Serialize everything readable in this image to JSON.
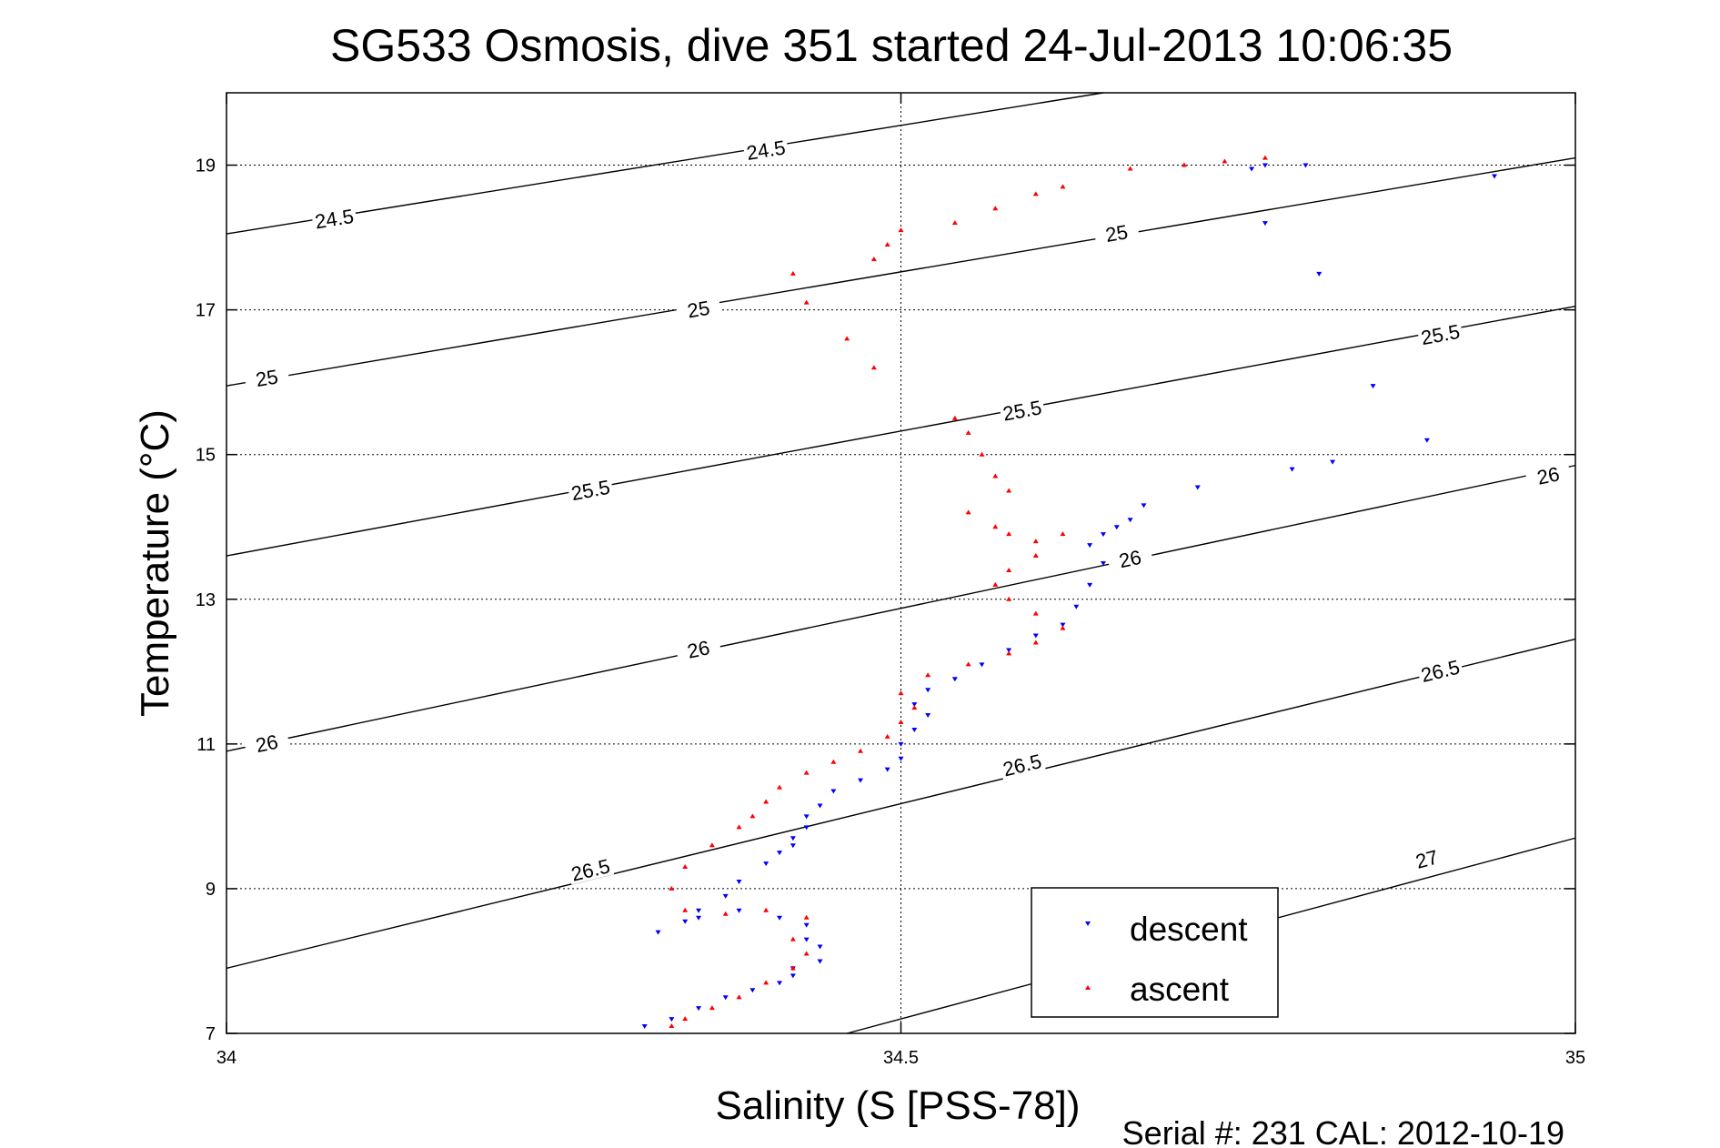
{
  "chart_data": {
    "type": "scatter",
    "title": "SG533 Osmosis, dive 351 started 24-Jul-2013 10:06:35",
    "xlabel": "Salinity (S [PSS-78])",
    "ylabel": "Temperature (°C)",
    "xlim": [
      34,
      35
    ],
    "ylim": [
      7,
      20
    ],
    "xticks": [
      "34",
      "34.5",
      "35"
    ],
    "yticks": [
      "7",
      "9",
      "11",
      "13",
      "15",
      "17",
      "19"
    ],
    "grid": "dotted",
    "legend_position": "bottom-right",
    "footer": "Serial #: 231  CAL: 2012-10-19",
    "contours": [
      {
        "label": "24.5",
        "x": [
          34.0,
          34.65
        ],
        "y": [
          18.05,
          20.0
        ]
      },
      {
        "label": "25",
        "x": [
          34.0,
          35.0
        ],
        "y": [
          15.95,
          19.1
        ]
      },
      {
        "label": "25.5",
        "x": [
          34.0,
          35.0
        ],
        "y": [
          13.6,
          17.05
        ]
      },
      {
        "label": "26",
        "x": [
          34.0,
          35.0
        ],
        "y": [
          10.9,
          14.85
        ]
      },
      {
        "label": "26.5",
        "x": [
          34.0,
          35.0
        ],
        "y": [
          7.9,
          12.45
        ]
      },
      {
        "label": "27",
        "x": [
          34.46,
          35.0
        ],
        "y": [
          7.0,
          9.7
        ]
      }
    ],
    "contour_labels": [
      {
        "text": "24.5",
        "x": 34.08,
        "y": 18.25
      },
      {
        "text": "24.5",
        "x": 34.4,
        "y": 19.2
      },
      {
        "text": "25",
        "x": 34.03,
        "y": 16.05
      },
      {
        "text": "25",
        "x": 34.35,
        "y": 17.0
      },
      {
        "text": "25",
        "x": 34.66,
        "y": 18.05
      },
      {
        "text": "25.5",
        "x": 34.27,
        "y": 14.5
      },
      {
        "text": "25.5",
        "x": 34.59,
        "y": 15.6
      },
      {
        "text": "25.5",
        "x": 34.9,
        "y": 16.65
      },
      {
        "text": "26",
        "x": 34.03,
        "y": 11.0
      },
      {
        "text": "26",
        "x": 34.35,
        "y": 12.3
      },
      {
        "text": "26",
        "x": 34.67,
        "y": 13.55
      },
      {
        "text": "26",
        "x": 34.98,
        "y": 14.7
      },
      {
        "text": "26.5",
        "x": 34.27,
        "y": 9.25
      },
      {
        "text": "26.5",
        "x": 34.59,
        "y": 10.7
      },
      {
        "text": "26.5",
        "x": 34.9,
        "y": 12.0
      },
      {
        "text": "27",
        "x": 34.89,
        "y": 9.4
      }
    ],
    "series": [
      {
        "name": "descent",
        "color": "#0000ff",
        "marker": "triangle-down",
        "x": [
          34.94,
          34.89,
          34.85,
          34.81,
          34.82,
          34.79,
          34.77,
          34.77,
          34.8,
          34.76,
          34.72,
          34.68,
          34.67,
          34.66,
          34.65,
          34.64,
          34.65,
          34.64,
          34.63,
          34.62,
          34.6,
          34.58,
          34.56,
          34.54,
          34.52,
          34.51,
          34.52,
          34.51,
          34.5,
          34.5,
          34.49,
          34.47,
          34.45,
          34.44,
          34.43,
          34.43,
          34.42,
          34.42,
          34.41,
          34.4,
          34.38,
          34.37,
          34.35,
          34.34,
          34.32,
          34.35,
          34.38,
          34.41,
          34.43,
          34.43,
          34.44,
          34.44,
          34.42,
          34.42,
          34.41,
          34.39,
          34.37,
          34.35,
          34.33,
          34.31
        ],
        "y": [
          18.85,
          15.2,
          15.95,
          17.5,
          14.9,
          14.8,
          18.2,
          19.0,
          19.0,
          18.95,
          14.55,
          14.3,
          14.1,
          14.0,
          13.9,
          13.75,
          13.5,
          13.2,
          12.9,
          12.65,
          12.5,
          12.3,
          12.1,
          11.9,
          11.75,
          11.55,
          11.4,
          11.2,
          11.0,
          10.8,
          10.65,
          10.5,
          10.35,
          10.15,
          10.0,
          9.85,
          9.7,
          9.6,
          9.5,
          9.35,
          9.1,
          8.9,
          8.7,
          8.55,
          8.4,
          8.6,
          8.7,
          8.6,
          8.5,
          8.3,
          8.2,
          8.0,
          7.9,
          7.8,
          7.7,
          7.6,
          7.5,
          7.35,
          7.2,
          7.1
        ]
      },
      {
        "name": "ascent",
        "color": "#ff0000",
        "marker": "triangle-up",
        "x": [
          34.77,
          34.74,
          34.71,
          34.67,
          34.62,
          34.6,
          34.57,
          34.54,
          34.5,
          34.49,
          34.48,
          34.42,
          34.43,
          34.46,
          34.48,
          34.54,
          34.55,
          34.56,
          34.57,
          34.58,
          34.55,
          34.57,
          34.58,
          34.6,
          34.62,
          34.6,
          34.58,
          34.57,
          34.58,
          34.6,
          34.62,
          34.6,
          34.58,
          34.55,
          34.52,
          34.5,
          34.51,
          34.5,
          34.49,
          34.47,
          34.45,
          34.43,
          34.41,
          34.4,
          34.39,
          34.38,
          34.36,
          34.34,
          34.33,
          34.34,
          34.37,
          34.4,
          34.43,
          34.42,
          34.43,
          34.42,
          34.4,
          34.38,
          34.36,
          34.34,
          34.33
        ],
        "y": [
          19.1,
          19.05,
          19.0,
          18.95,
          18.7,
          18.6,
          18.4,
          18.2,
          18.1,
          17.9,
          17.7,
          17.5,
          17.1,
          16.6,
          16.2,
          15.5,
          15.3,
          15.0,
          14.7,
          14.5,
          14.2,
          14.0,
          13.9,
          13.8,
          13.9,
          13.6,
          13.4,
          13.2,
          13.0,
          12.8,
          12.6,
          12.4,
          12.25,
          12.1,
          11.95,
          11.7,
          11.5,
          11.3,
          11.1,
          10.9,
          10.75,
          10.6,
          10.4,
          10.2,
          10.0,
          9.85,
          9.6,
          9.3,
          9.0,
          8.7,
          8.65,
          8.7,
          8.6,
          8.3,
          8.1,
          7.9,
          7.7,
          7.5,
          7.35,
          7.2,
          7.1
        ]
      }
    ]
  }
}
